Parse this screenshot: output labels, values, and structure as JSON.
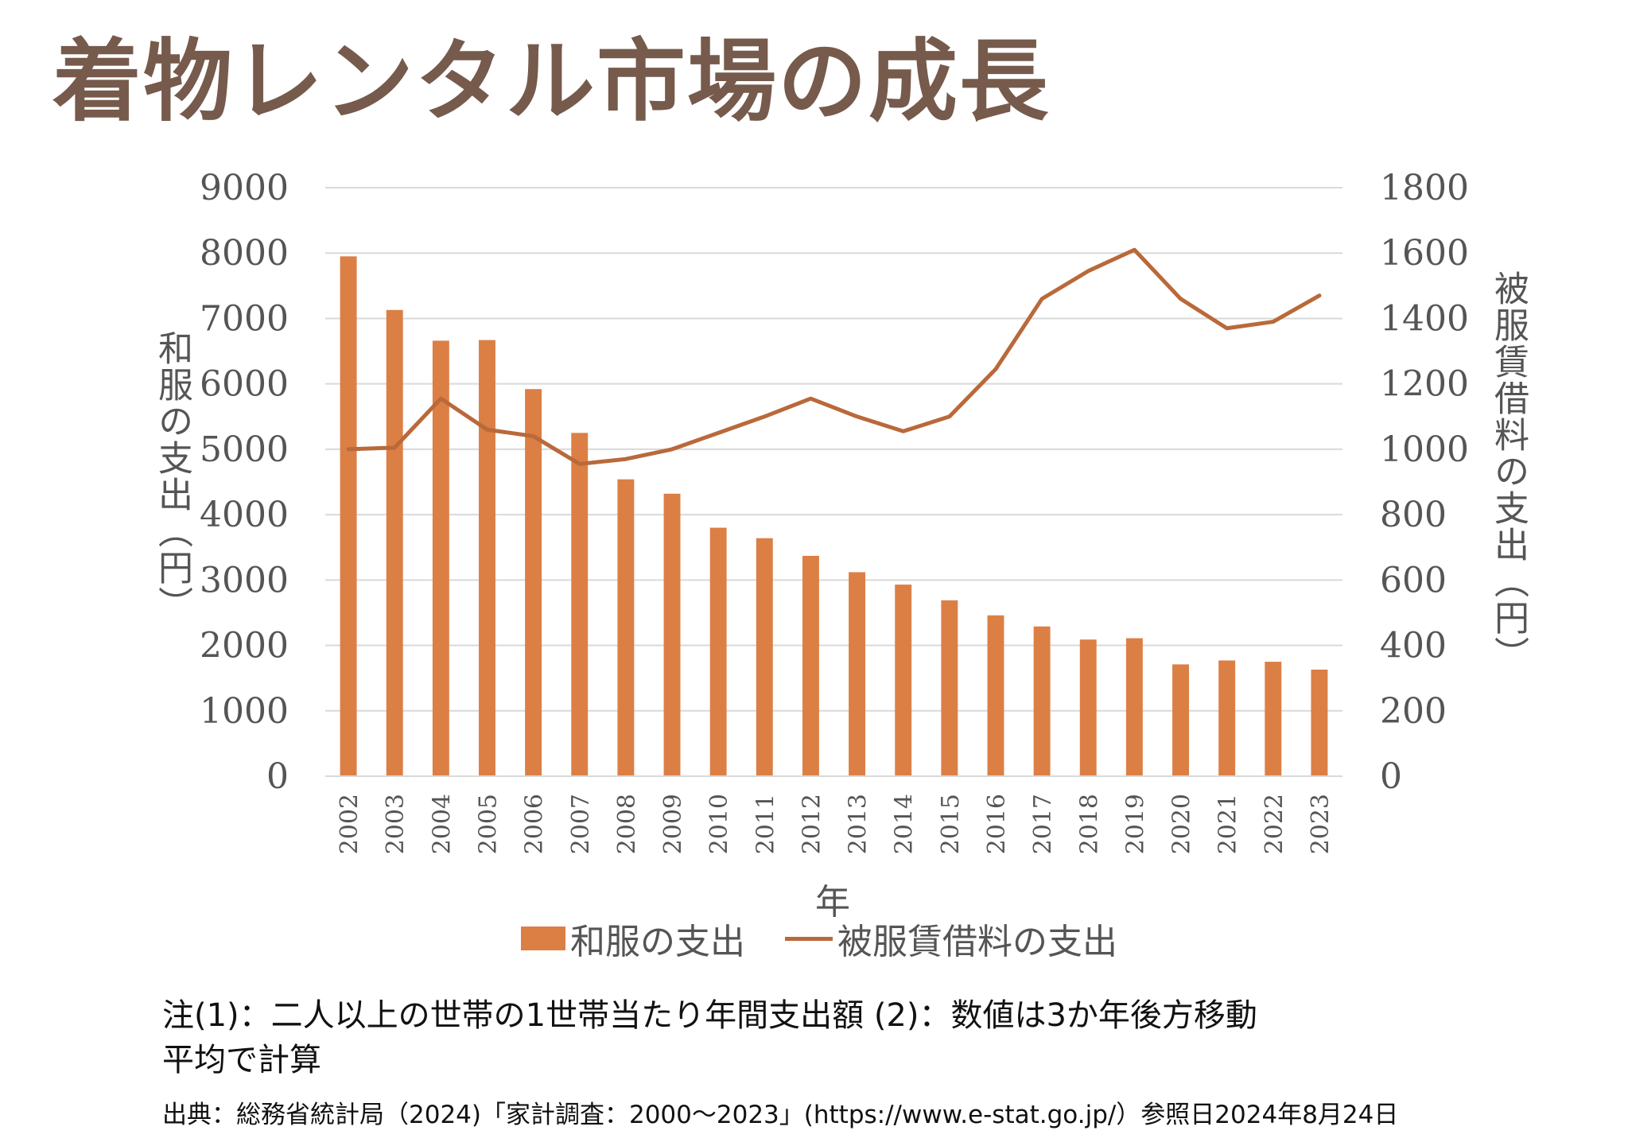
{
  "title": "着物レンタル市場の成長",
  "chart_data": {
    "type": "bar+line",
    "xlabel": "年",
    "ylabel_left": "和服の支出（円）",
    "ylabel_right": "被服賃借料の支出（円）",
    "categories": [
      "2002",
      "2003",
      "2004",
      "2005",
      "2006",
      "2007",
      "2008",
      "2009",
      "2010",
      "2011",
      "2012",
      "2013",
      "2014",
      "2015",
      "2016",
      "2017",
      "2018",
      "2019",
      "2020",
      "2021",
      "2022",
      "2023"
    ],
    "ylim_left": [
      0,
      9000
    ],
    "yticks_left": [
      "0",
      "1000",
      "2000",
      "3000",
      "4000",
      "5000",
      "6000",
      "7000",
      "8000",
      "9000"
    ],
    "ylim_right": [
      0,
      1800
    ],
    "yticks_right": [
      "0",
      "200",
      "400",
      "600",
      "800",
      "1000",
      "1200",
      "1400",
      "1600",
      "1800"
    ],
    "grid": true,
    "legend_placement": "bottom",
    "series": [
      {
        "name": "和服の支出",
        "type": "bar",
        "axis": "left",
        "color": "#dc7f45",
        "values": [
          7950,
          7130,
          6660,
          6670,
          5920,
          5250,
          4540,
          4320,
          3800,
          3640,
          3370,
          3120,
          2930,
          2690,
          2460,
          2290,
          2090,
          2110,
          1710,
          1770,
          1750,
          1630
        ]
      },
      {
        "name": "被服賃借料の支出",
        "type": "line",
        "axis": "right",
        "color": "#b9693a",
        "values": [
          1000,
          1005,
          1155,
          1060,
          1040,
          955,
          970,
          1000,
          1050,
          1100,
          1155,
          1100,
          1055,
          1100,
          1245,
          1460,
          1545,
          1610,
          1460,
          1370,
          1390,
          1470
        ]
      }
    ]
  },
  "notes": {
    "line1": "注(1)：二人以上の世帯の1世帯当たり年間支出額 (2)：数値は3か年後方移動",
    "line2": "平均で計算",
    "source": "出典：総務省統計局（2024)「家計調査：2000～2023」(https://www.e-stat.go.jp/）参照日2024年8月24日"
  }
}
